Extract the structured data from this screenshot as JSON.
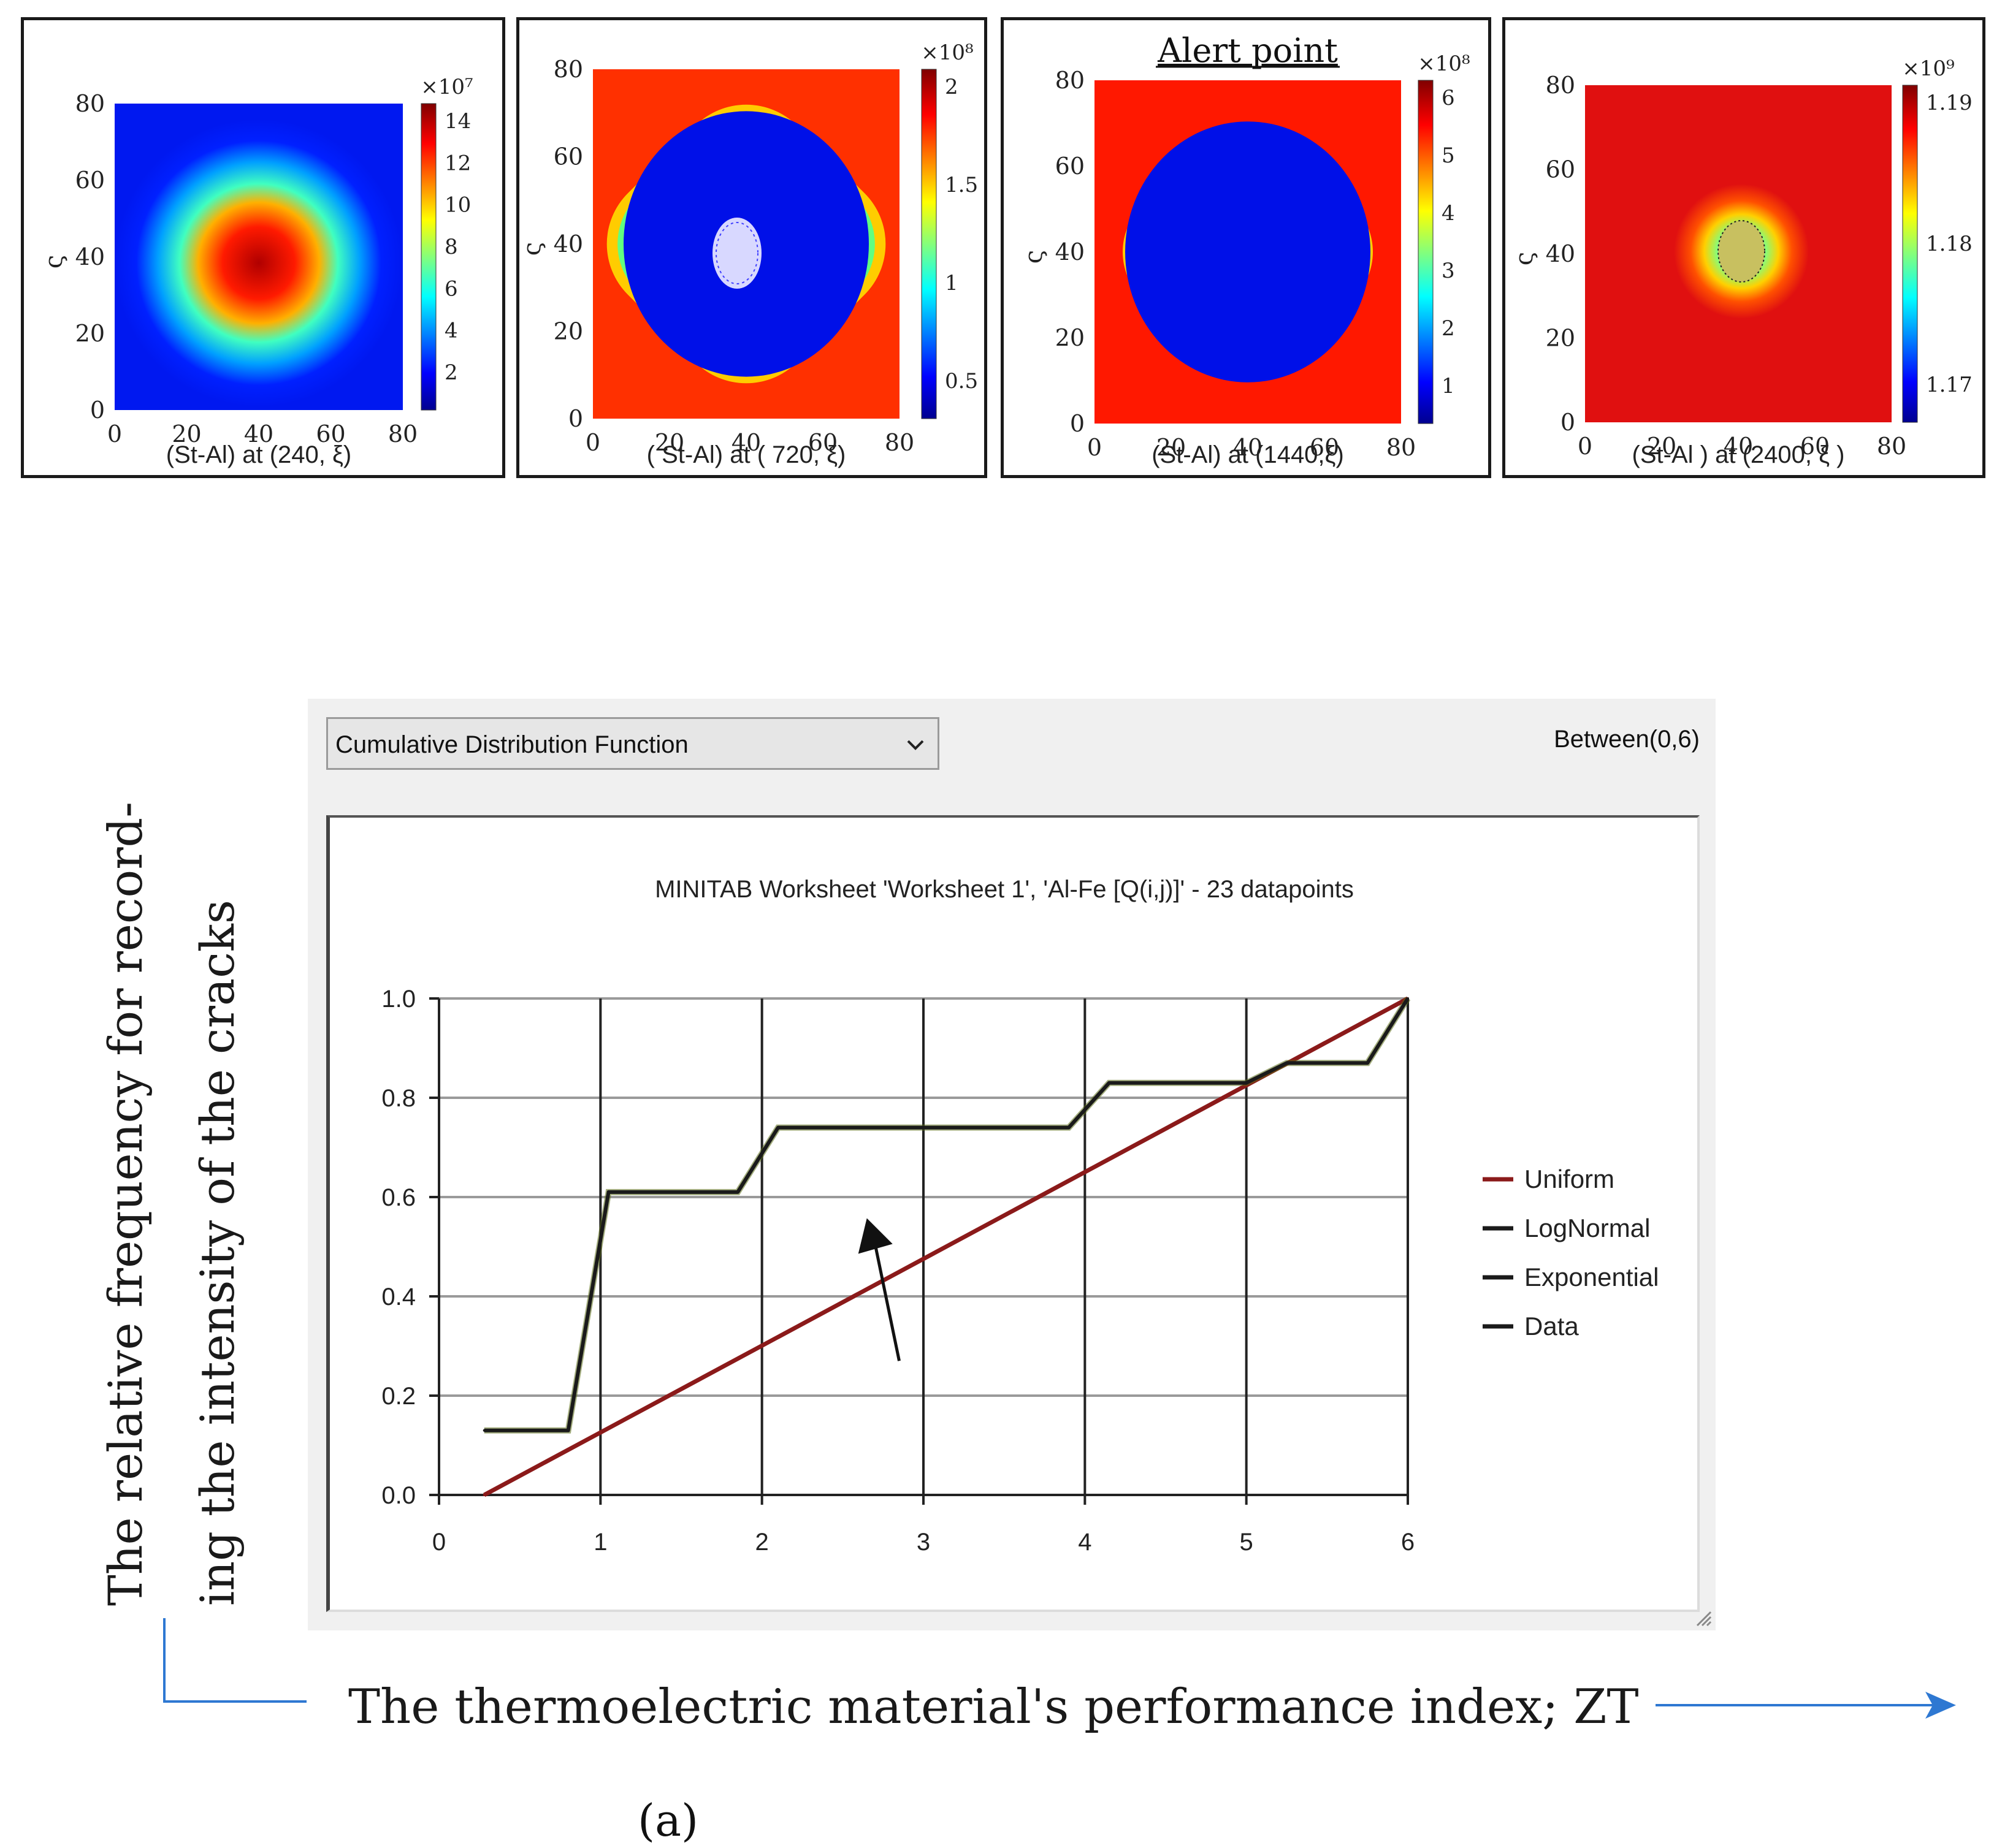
{
  "panels": [
    {
      "x_ticks": [
        "0",
        "20",
        "40",
        "60",
        "80"
      ],
      "y_ticks": [
        "0",
        "20",
        "40",
        "60",
        "80"
      ],
      "y_axis_symbol": "ς",
      "colorbar_exponent": "×10⁷",
      "colorbar_ticks": [
        "14",
        "12",
        "10",
        "8",
        "6",
        "4",
        "2"
      ],
      "caption": "(St-Al) at (240, ξ)",
      "title": "",
      "pattern": "center-hot"
    },
    {
      "x_ticks": [
        "0",
        "20",
        "40",
        "60",
        "80"
      ],
      "y_ticks": [
        "0",
        "20",
        "40",
        "60",
        "80"
      ],
      "y_axis_symbol": "ς",
      "colorbar_exponent": "×10⁸",
      "colorbar_ticks": [
        "2",
        "1.5",
        "1",
        "0.5"
      ],
      "caption": "( St-Al)   at  ( 720, ξ)",
      "title": "",
      "pattern": "diamond-cool-center"
    },
    {
      "x_ticks": [
        "0",
        "20",
        "40",
        "60",
        "80"
      ],
      "y_ticks": [
        "0",
        "20",
        "40",
        "60",
        "80"
      ],
      "y_axis_symbol": "ς",
      "colorbar_exponent": "×10⁸",
      "colorbar_ticks": [
        "6",
        "5",
        "4",
        "3",
        "2",
        "1"
      ],
      "caption": "(St-Al) at (1440,ξ)",
      "title": "Alert point",
      "pattern": "diamond-hot-edges"
    },
    {
      "x_ticks": [
        "0",
        "20",
        "40",
        "60",
        "80"
      ],
      "y_ticks": [
        "0",
        "20",
        "40",
        "60",
        "80"
      ],
      "y_axis_symbol": "ς",
      "colorbar_exponent": "×10⁹",
      "colorbar_ticks": [
        "1.19",
        "1.18",
        "1.17"
      ],
      "caption": "(St-Al ) at (2400, ξ )",
      "title": "",
      "pattern": "all-hot"
    }
  ],
  "window": {
    "dropdown_label": "Cumulative Distribution Function",
    "range_label": "Between(0,6)"
  },
  "outer_labels": {
    "ylabel_line1": "The relative frequency for record-",
    "ylabel_line2": "ing the intensity of the cracks",
    "xlabel": "The thermoelectric material's performance index; ZT",
    "figure_label": "(a)"
  },
  "colors": {
    "uniform": "#8b1a1a",
    "data": "#1a1a1a",
    "data_highlight": "#5a6b14",
    "grid": "#9a9a9a",
    "axis_arrow": "#2e78d2"
  },
  "chart_data": {
    "type": "line",
    "title": "MINITAB Worksheet 'Worksheet 1', 'Al-Fe [Q(i,j)]' - 23 datapoints",
    "xlabel": "",
    "ylabel": "",
    "xlim": [
      0,
      6
    ],
    "ylim": [
      0,
      1
    ],
    "x_ticks": [
      "0",
      "1",
      "2",
      "3",
      "4",
      "5",
      "6"
    ],
    "y_ticks": [
      "0.0",
      "0.2",
      "0.4",
      "0.6",
      "0.8",
      "1.0"
    ],
    "grid": true,
    "legend_position": "right",
    "legend": [
      "Uniform",
      "LogNormal",
      "Exponential",
      "Data"
    ],
    "series": [
      {
        "name": "Uniform",
        "x": [
          0.28,
          6.0
        ],
        "y": [
          0.0,
          1.0
        ]
      },
      {
        "name": "Data",
        "x": [
          0.28,
          0.8,
          1.05,
          1.85,
          2.1,
          3.9,
          4.15,
          5.0,
          5.25,
          5.75,
          6.0
        ],
        "y": [
          0.13,
          0.13,
          0.61,
          0.61,
          0.74,
          0.74,
          0.83,
          0.83,
          0.87,
          0.87,
          1.0
        ]
      }
    ],
    "annotation": "arrow pointing up-left near x=2.7, y=0.55"
  }
}
